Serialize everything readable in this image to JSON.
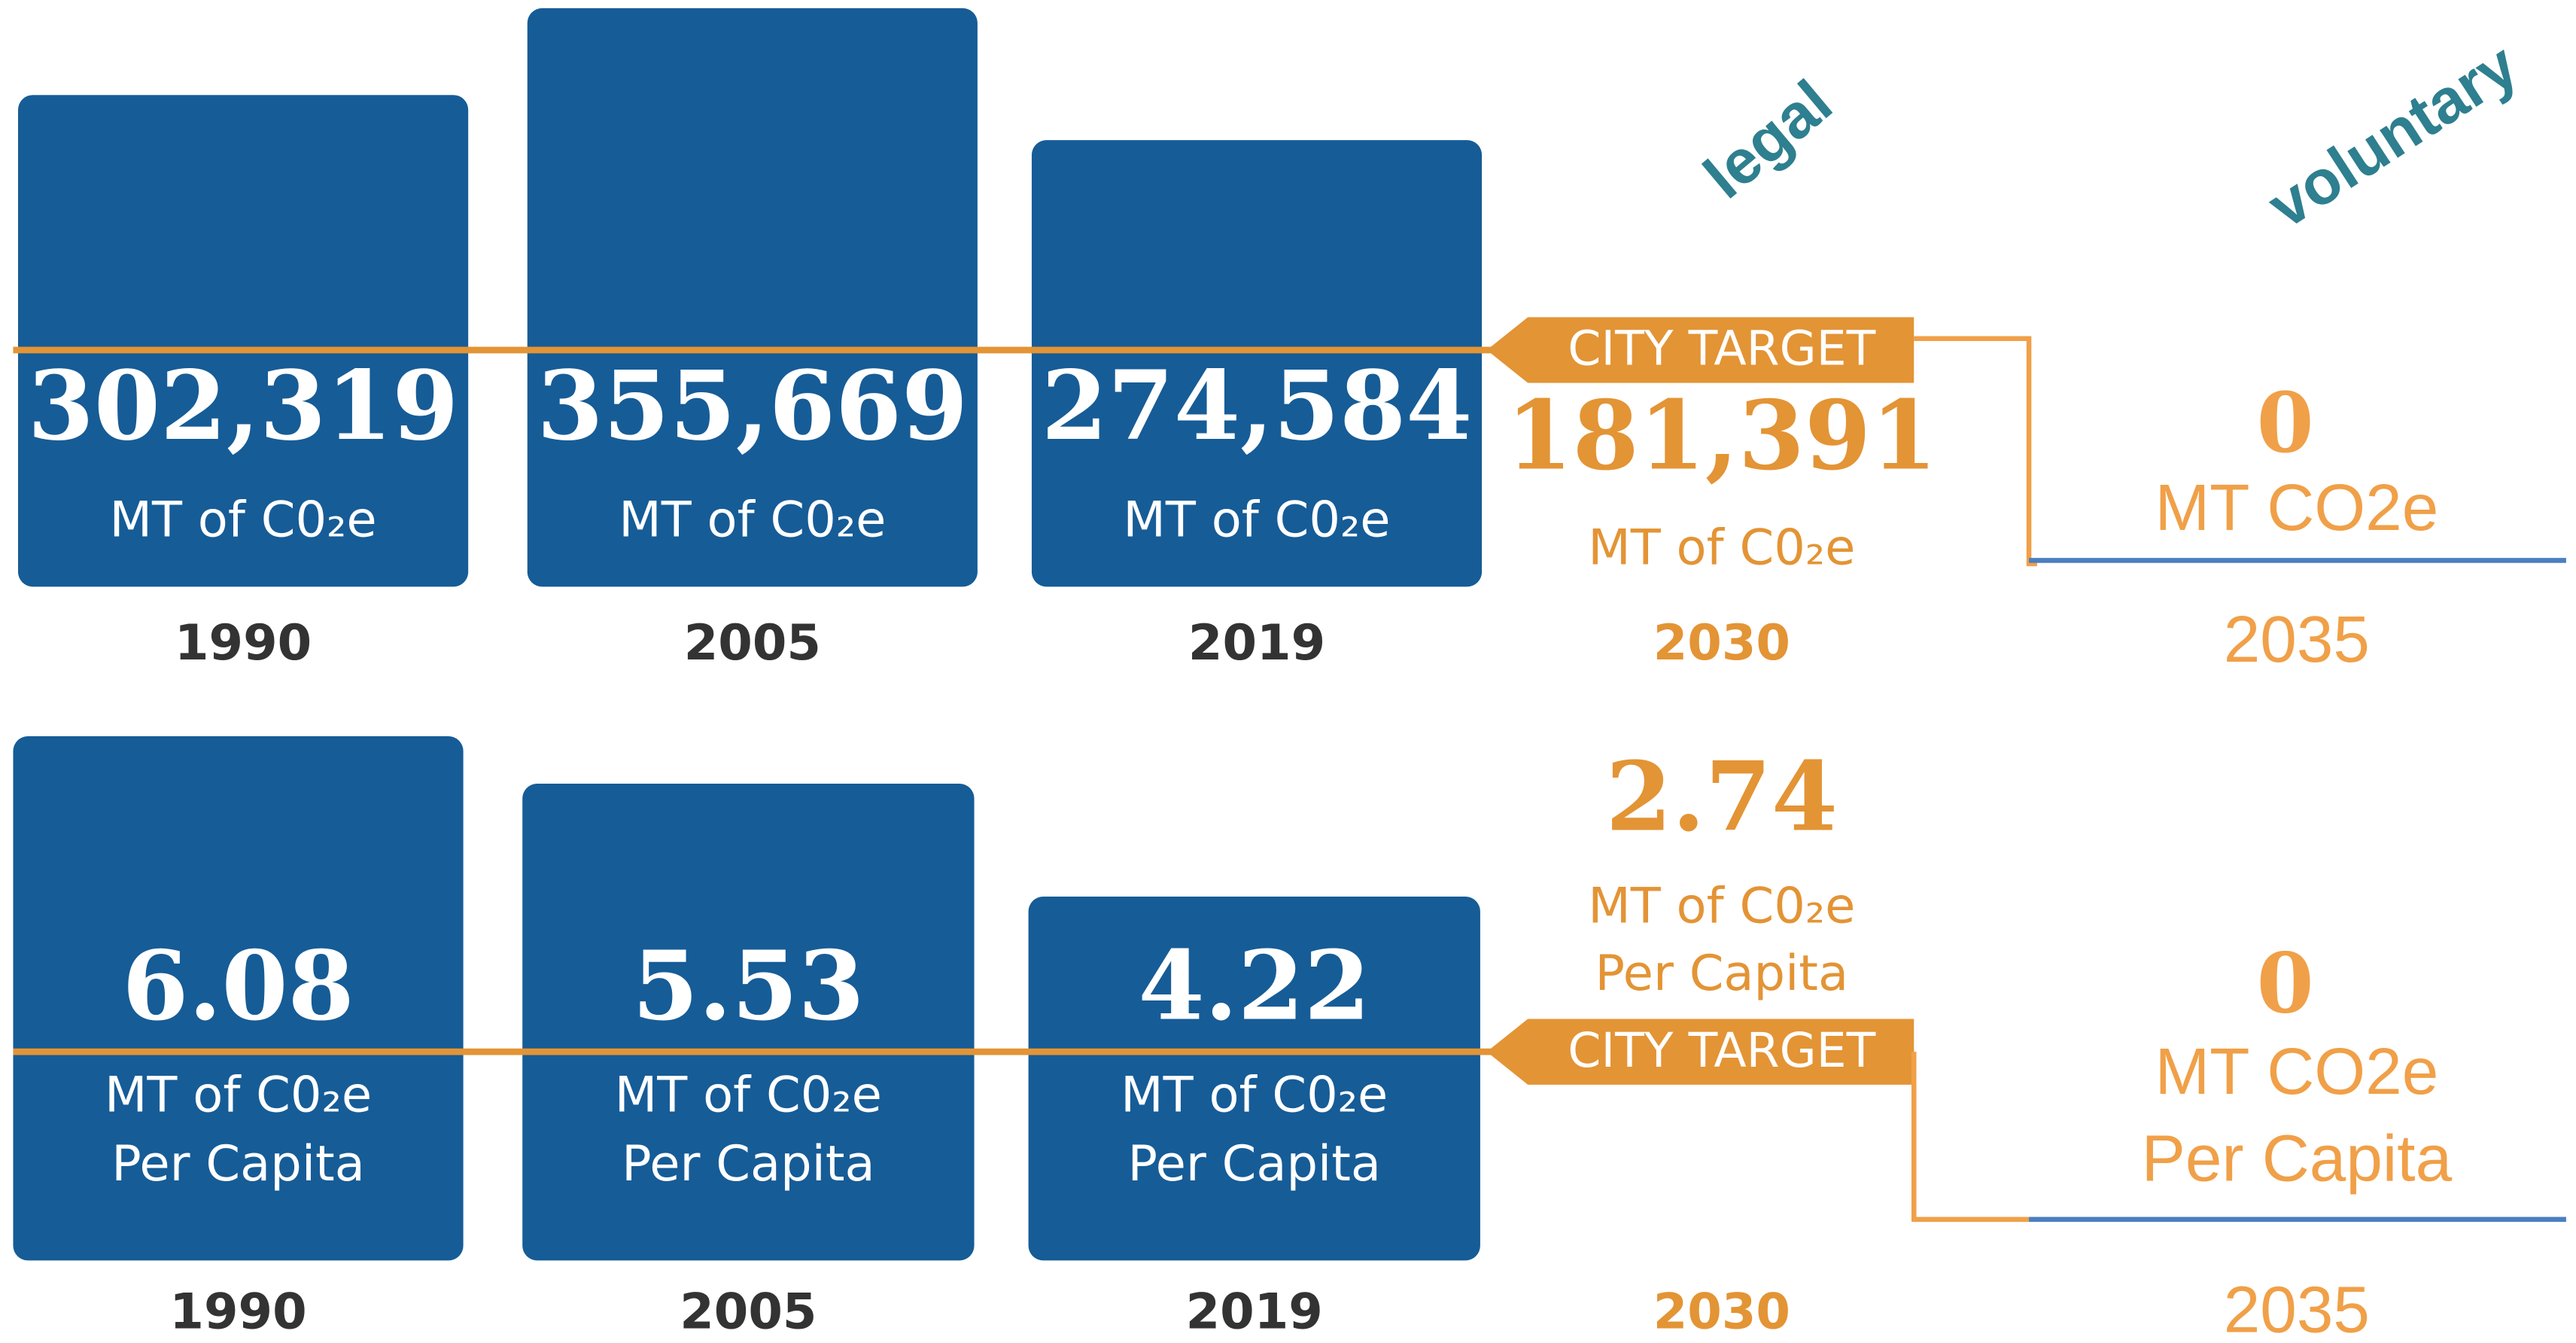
{
  "chart_data": [
    {
      "type": "bar",
      "categories": [
        "1990",
        "2005",
        "2019"
      ],
      "values": [
        302319,
        355669,
        274584
      ],
      "value_labels": [
        "302,319",
        "355,669",
        "274,584"
      ],
      "unit": [
        "MT of C0₂e"
      ],
      "color": "#165c97",
      "target": {
        "label": "CITY TARGET",
        "value": 181391,
        "value_label": "181,391",
        "unit": [
          "MT of C0₂e"
        ],
        "year": "2030",
        "color": "#e39435"
      },
      "goal": {
        "value": 0,
        "unit": [
          "MT CO2e"
        ],
        "year": "2035",
        "color": "#f0a048"
      },
      "annotations": [
        "legal",
        "voluntary"
      ]
    },
    {
      "type": "bar",
      "categories": [
        "1990",
        "2005",
        "2019"
      ],
      "values": [
        6.08,
        5.53,
        4.22
      ],
      "unit": [
        "MT of C0₂e",
        "Per Capita"
      ],
      "color": "#165c97",
      "target": {
        "label": "CITY TARGET",
        "value": 2.74,
        "unit": [
          "MT of C0₂e",
          "Per Capita"
        ],
        "year": "2030",
        "color": "#e39435"
      },
      "goal": {
        "value": 0,
        "unit": [
          "MT CO2e",
          "Per Capita"
        ],
        "year": "2035",
        "color": "#f0a048"
      }
    }
  ]
}
